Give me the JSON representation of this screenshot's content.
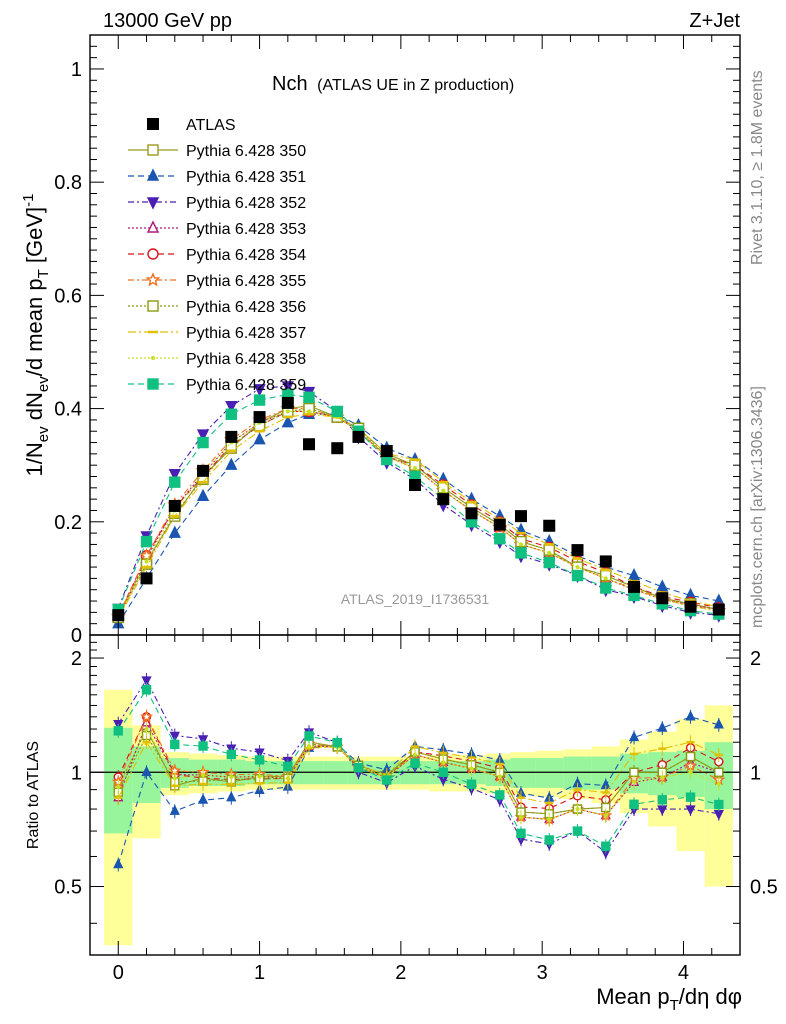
{
  "header": {
    "left": "13000 GeV pp",
    "right": "Z+Jet"
  },
  "side_labels": {
    "rivet": "Rivet 3.1.10, ≥ 1.8M events",
    "mcplots": "mcplots.cern.ch [arXiv:1306.3436]"
  },
  "chart_data": {
    "type": "scatter",
    "title_main": "Nch",
    "title_sub": "(ATLAS UE in Z production)",
    "watermark": "ATLAS_2019_I1736531",
    "xlabel": "Mean p_T/dη dφ",
    "ylabel": "1/N_ev dN_ev/d mean p_T [GeV]^-1",
    "ratio_ylabel": "Ratio to ATLAS",
    "xlim": [
      -0.2,
      4.4
    ],
    "ylim": [
      0,
      1.06
    ],
    "ratio_ylim": [
      0.33,
      2.3
    ],
    "x_ticks": [
      "0",
      "1",
      "2",
      "3",
      "4"
    ],
    "y_ticks": [
      "0",
      "0.2",
      "0.4",
      "0.6",
      "0.8",
      "1"
    ],
    "ratio_ticks": [
      "0.5",
      "1",
      "2"
    ],
    "x": [
      0.0,
      0.2,
      0.4,
      0.6,
      0.8,
      1.0,
      1.2,
      1.35,
      1.55,
      1.7,
      1.9,
      2.1,
      2.3,
      2.5,
      2.7,
      2.85,
      3.05,
      3.25,
      3.45,
      3.65,
      3.85,
      4.05,
      4.25
    ],
    "atlas": {
      "name": "ATLAS",
      "color": "#000000",
      "values": [
        0.035,
        0.1,
        0.228,
        0.29,
        0.35,
        0.385,
        0.41,
        0.337,
        0.33,
        0.35,
        0.325,
        0.265,
        0.24,
        0.215,
        0.195,
        0.21,
        0.193,
        0.15,
        0.13,
        0.085,
        0.065,
        0.05,
        0.045
      ],
      "band_green": [
        0.31,
        0.17,
        0.09,
        0.08,
        0.08,
        0.07,
        0.07,
        0.07,
        0.07,
        0.07,
        0.07,
        0.07,
        0.07,
        0.07,
        0.08,
        0.09,
        0.09,
        0.1,
        0.1,
        0.12,
        0.13,
        0.14,
        0.2
      ],
      "band_yellow": [
        0.65,
        0.33,
        0.13,
        0.12,
        0.11,
        0.1,
        0.1,
        0.1,
        0.1,
        0.1,
        0.1,
        0.1,
        0.11,
        0.11,
        0.12,
        0.13,
        0.14,
        0.15,
        0.17,
        0.22,
        0.28,
        0.38,
        0.5
      ]
    },
    "series": [
      {
        "name": "Pythia 6.428 350",
        "color": "#9a9a20",
        "marker": "square-open",
        "dash": "",
        "values": [
          0.032,
          0.13,
          0.21,
          0.28,
          0.33,
          0.375,
          0.4,
          0.405,
          0.385,
          0.365,
          0.32,
          0.3,
          0.26,
          0.225,
          0.195,
          0.165,
          0.15,
          0.12,
          0.105,
          0.085,
          0.065,
          0.055,
          0.045
        ]
      },
      {
        "name": "Pythia 6.428 351",
        "color": "#1a55b0",
        "marker": "triangle-up-filled",
        "dash": "6,4",
        "values": [
          0.02,
          0.1,
          0.18,
          0.245,
          0.3,
          0.345,
          0.375,
          0.39,
          0.39,
          0.37,
          0.33,
          0.31,
          0.275,
          0.24,
          0.21,
          0.185,
          0.165,
          0.14,
          0.12,
          0.105,
          0.085,
          0.07,
          0.06
        ]
      },
      {
        "name": "Pythia 6.428 352",
        "color": "#4a1fb3",
        "marker": "triangle-down-filled",
        "dash": "6,3,2,3",
        "values": [
          0.047,
          0.175,
          0.285,
          0.355,
          0.405,
          0.435,
          0.44,
          0.43,
          0.395,
          0.35,
          0.305,
          0.275,
          0.23,
          0.195,
          0.165,
          0.14,
          0.125,
          0.105,
          0.08,
          0.068,
          0.052,
          0.04,
          0.035
        ]
      },
      {
        "name": "Pythia 6.428 353",
        "color": "#b01a7a",
        "marker": "triangle-up-open",
        "dash": "2,2",
        "values": [
          0.03,
          0.135,
          0.225,
          0.285,
          0.34,
          0.375,
          0.395,
          0.395,
          0.385,
          0.36,
          0.315,
          0.295,
          0.255,
          0.22,
          0.19,
          0.16,
          0.145,
          0.12,
          0.1,
          0.08,
          0.063,
          0.053,
          0.045
        ]
      },
      {
        "name": "Pythia 6.428 354",
        "color": "#d8141c",
        "marker": "circle-open",
        "dash": "6,4",
        "values": [
          0.034,
          0.14,
          0.225,
          0.28,
          0.335,
          0.37,
          0.395,
          0.395,
          0.385,
          0.36,
          0.315,
          0.3,
          0.265,
          0.23,
          0.2,
          0.17,
          0.155,
          0.13,
          0.11,
          0.085,
          0.068,
          0.058,
          0.048
        ]
      },
      {
        "name": "Pythia 6.428 355",
        "color": "#f07020",
        "marker": "star-open",
        "dash": "6,3,2,3",
        "values": [
          0.033,
          0.14,
          0.23,
          0.29,
          0.345,
          0.38,
          0.4,
          0.4,
          0.385,
          0.36,
          0.315,
          0.295,
          0.255,
          0.22,
          0.19,
          0.16,
          0.145,
          0.12,
          0.1,
          0.082,
          0.063,
          0.052,
          0.043
        ]
      },
      {
        "name": "Pythia 6.428 356",
        "color": "#8a9a10",
        "marker": "square-open",
        "dash": "2,2",
        "values": [
          0.031,
          0.125,
          0.215,
          0.275,
          0.335,
          0.37,
          0.395,
          0.4,
          0.385,
          0.365,
          0.315,
          0.3,
          0.26,
          0.225,
          0.195,
          0.165,
          0.15,
          0.12,
          0.105,
          0.085,
          0.065,
          0.055,
          0.045
        ]
      },
      {
        "name": "Pythia 6.428 357",
        "color": "#e0c000",
        "marker": "dash-mark",
        "dash": "8,3,2,3",
        "values": [
          0.03,
          0.12,
          0.21,
          0.27,
          0.325,
          0.36,
          0.385,
          0.39,
          0.385,
          0.365,
          0.32,
          0.31,
          0.27,
          0.235,
          0.205,
          0.18,
          0.16,
          0.135,
          0.115,
          0.095,
          0.075,
          0.06,
          0.05
        ]
      },
      {
        "name": "Pythia 6.428 358",
        "color": "#c8e020",
        "marker": "dot",
        "dash": "2,2",
        "values": [
          0.032,
          0.13,
          0.22,
          0.285,
          0.34,
          0.375,
          0.395,
          0.395,
          0.385,
          0.36,
          0.315,
          0.295,
          0.255,
          0.22,
          0.19,
          0.16,
          0.145,
          0.12,
          0.1,
          0.08,
          0.063,
          0.05,
          0.042
        ]
      },
      {
        "name": "Pythia 6.428 359",
        "color": "#10c080",
        "marker": "square-filled",
        "dash": "6,4",
        "values": [
          0.045,
          0.165,
          0.27,
          0.34,
          0.39,
          0.415,
          0.425,
          0.42,
          0.395,
          0.36,
          0.31,
          0.28,
          0.24,
          0.2,
          0.17,
          0.145,
          0.128,
          0.105,
          0.083,
          0.07,
          0.055,
          0.043,
          0.037
        ]
      }
    ]
  }
}
